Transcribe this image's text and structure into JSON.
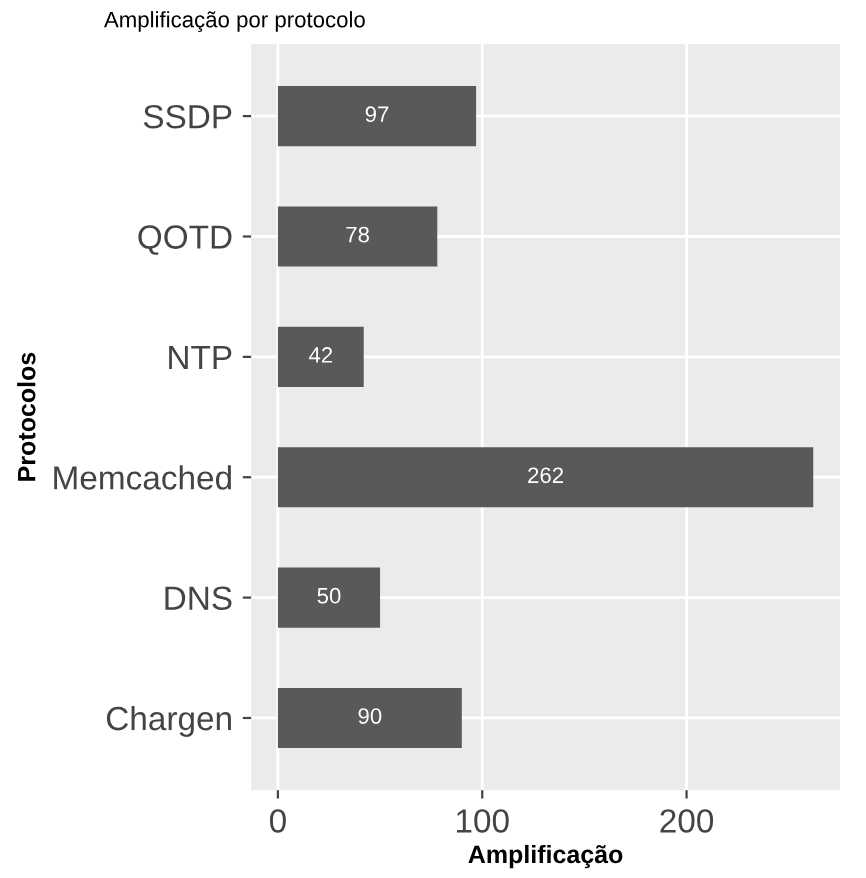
{
  "chart_data": {
    "type": "bar",
    "orientation": "horizontal",
    "title": "Amplificação por protocolo",
    "xlabel": "Amplificação",
    "ylabel": "Protocolos",
    "categories": [
      "SSDP",
      "QOTD",
      "NTP",
      "Memcached",
      "DNS",
      "Chargen"
    ],
    "values": [
      97,
      78,
      42,
      262,
      50,
      90
    ],
    "color": "#595959",
    "data_labels": true,
    "xlim": [
      -13.1,
      275.1
    ],
    "xticks": [
      0,
      100,
      200
    ],
    "grid": true
  }
}
